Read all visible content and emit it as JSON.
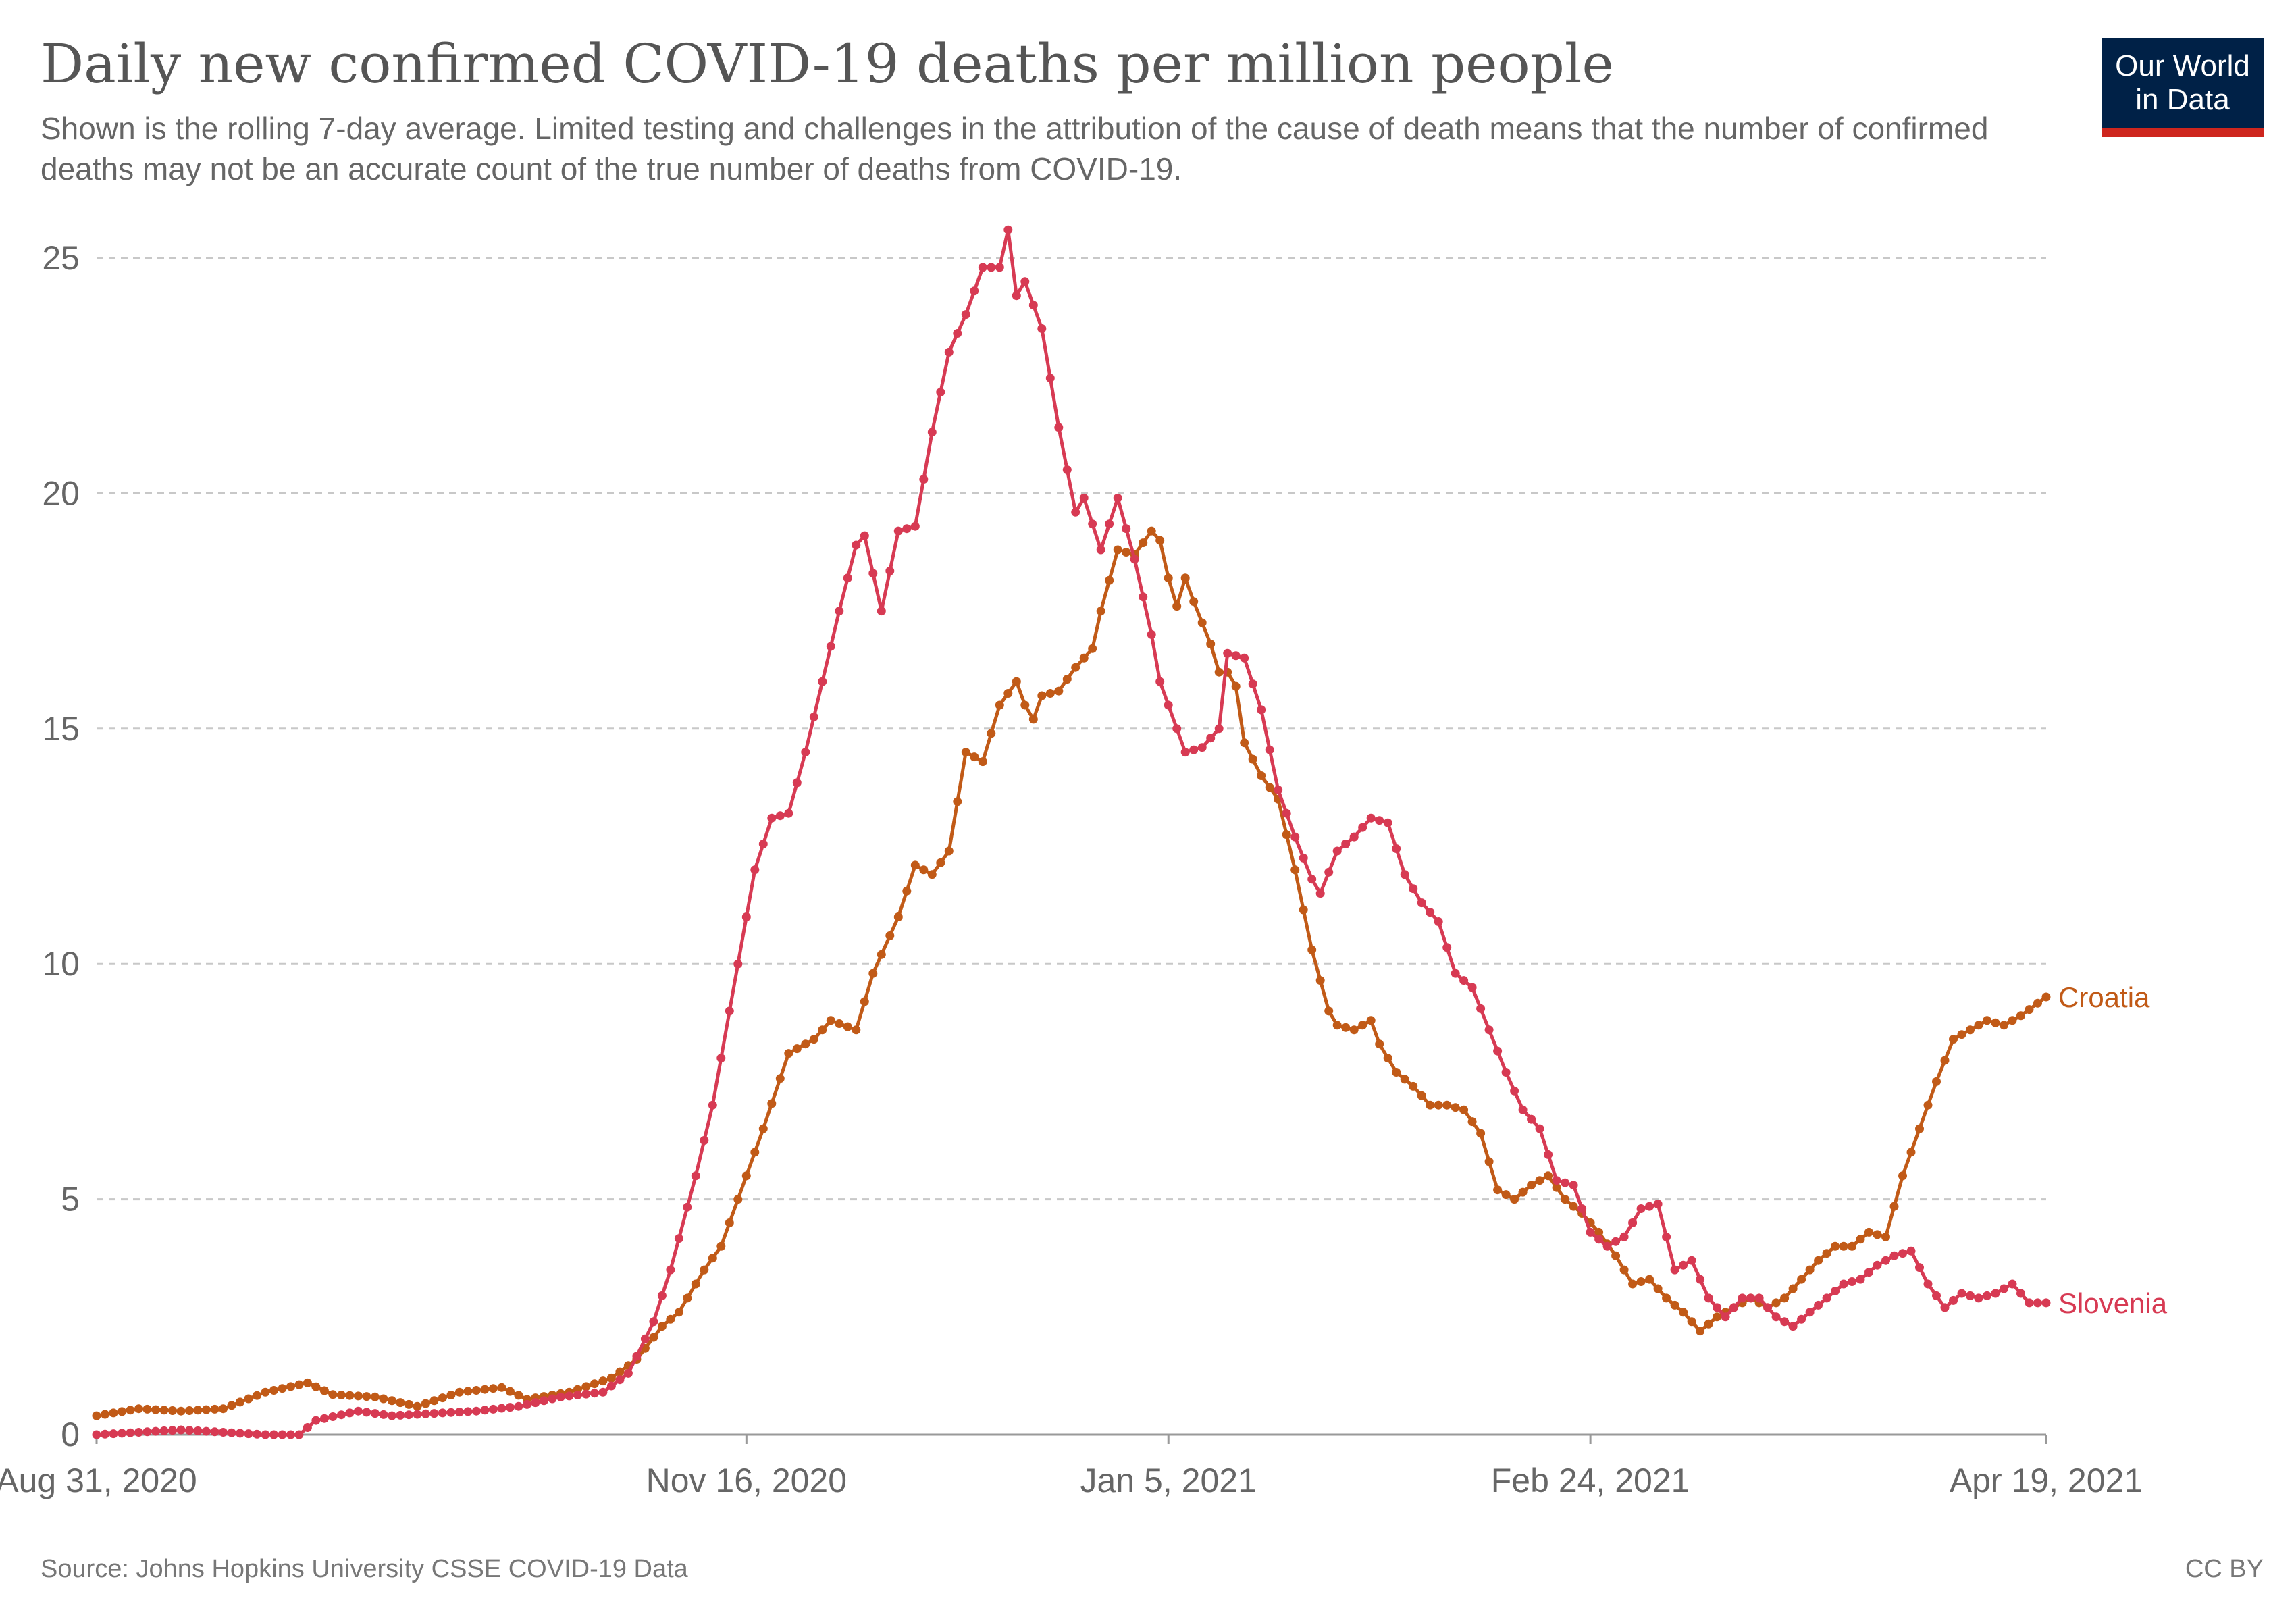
{
  "header": {
    "title": "Daily new confirmed COVID-19 deaths per million people",
    "subtitle": "Shown is the rolling 7-day average. Limited testing and challenges in the attribution of the cause of death means that the number of confirmed deaths may not be an accurate count of the true number of deaths from COVID-19."
  },
  "logo": {
    "line1": "Our World",
    "line2": "in Data"
  },
  "footer": {
    "source": "Source: Johns Hopkins University CSSE COVID-19 Data",
    "license": "CC BY"
  },
  "colors": {
    "croatia": "#c15a17",
    "slovenia": "#d73a53",
    "grid": "#c8c8c8",
    "axis": "#666666"
  },
  "chart_data": {
    "type": "line",
    "title": "Daily new confirmed COVID-19 deaths per million people",
    "x_start": "2020-08-31",
    "x_end": "2021-04-19",
    "xlim": [
      "2020-08-31",
      "2021-04-19"
    ],
    "ylim": [
      0,
      25
    ],
    "yticks": [
      0,
      5,
      10,
      15,
      20,
      25
    ],
    "xticks": [
      {
        "date": "2020-08-31",
        "label": "Aug 31, 2020"
      },
      {
        "date": "2020-11-16",
        "label": "Nov 16, 2020"
      },
      {
        "date": "2021-01-05",
        "label": "Jan 5, 2021"
      },
      {
        "date": "2021-02-24",
        "label": "Feb 24, 2021"
      },
      {
        "date": "2021-04-19",
        "label": "Apr 19, 2021"
      }
    ],
    "grid": "horizontal dashed",
    "legend": "labels at line ends",
    "series": [
      {
        "name": "Croatia",
        "points": [
          [
            "2020-08-31",
            0.4
          ],
          [
            "2020-09-05",
            0.55
          ],
          [
            "2020-09-10",
            0.5
          ],
          [
            "2020-09-15",
            0.55
          ],
          [
            "2020-09-20",
            0.9
          ],
          [
            "2020-09-25",
            1.1
          ],
          [
            "2020-09-28",
            0.85
          ],
          [
            "2020-10-03",
            0.8
          ],
          [
            "2020-10-08",
            0.6
          ],
          [
            "2020-10-13",
            0.9
          ],
          [
            "2020-10-18",
            1.0
          ],
          [
            "2020-10-21",
            0.75
          ],
          [
            "2020-10-26",
            0.9
          ],
          [
            "2020-10-31",
            1.2
          ],
          [
            "2020-11-03",
            1.6
          ],
          [
            "2020-11-06",
            2.3
          ],
          [
            "2020-11-08",
            2.6
          ],
          [
            "2020-11-11",
            3.5
          ],
          [
            "2020-11-13",
            4.0
          ],
          [
            "2020-11-16",
            5.5
          ],
          [
            "2020-11-18",
            6.5
          ],
          [
            "2020-11-21",
            8.1
          ],
          [
            "2020-11-24",
            8.4
          ],
          [
            "2020-11-26",
            8.8
          ],
          [
            "2020-11-29",
            8.6
          ],
          [
            "2020-12-01",
            9.8
          ],
          [
            "2020-12-04",
            11.0
          ],
          [
            "2020-12-06",
            12.1
          ],
          [
            "2020-12-08",
            11.9
          ],
          [
            "2020-12-10",
            12.4
          ],
          [
            "2020-12-12",
            14.5
          ],
          [
            "2020-12-14",
            14.3
          ],
          [
            "2020-12-16",
            15.5
          ],
          [
            "2020-12-18",
            16.0
          ],
          [
            "2020-12-19",
            15.5
          ],
          [
            "2020-12-20",
            15.2
          ],
          [
            "2020-12-21",
            15.7
          ],
          [
            "2020-12-23",
            15.8
          ],
          [
            "2020-12-25",
            16.3
          ],
          [
            "2020-12-27",
            16.7
          ],
          [
            "2020-12-28",
            17.5
          ],
          [
            "2020-12-30",
            18.8
          ],
          [
            "2021-01-01",
            18.7
          ],
          [
            "2021-01-03",
            19.2
          ],
          [
            "2021-01-04",
            19.0
          ],
          [
            "2021-01-05",
            18.2
          ],
          [
            "2021-01-06",
            17.6
          ],
          [
            "2021-01-07",
            18.2
          ],
          [
            "2021-01-08",
            17.7
          ],
          [
            "2021-01-10",
            16.8
          ],
          [
            "2021-01-11",
            16.2
          ],
          [
            "2021-01-12",
            16.2
          ],
          [
            "2021-01-13",
            15.9
          ],
          [
            "2021-01-14",
            14.7
          ],
          [
            "2021-01-16",
            14.0
          ],
          [
            "2021-01-18",
            13.5
          ],
          [
            "2021-01-20",
            12.0
          ],
          [
            "2021-01-22",
            10.3
          ],
          [
            "2021-01-24",
            9.0
          ],
          [
            "2021-01-25",
            8.7
          ],
          [
            "2021-01-27",
            8.6
          ],
          [
            "2021-01-29",
            8.8
          ],
          [
            "2021-01-30",
            8.3
          ],
          [
            "2021-02-01",
            7.7
          ],
          [
            "2021-02-03",
            7.4
          ],
          [
            "2021-02-05",
            7.0
          ],
          [
            "2021-02-07",
            7.0
          ],
          [
            "2021-02-09",
            6.9
          ],
          [
            "2021-02-11",
            6.4
          ],
          [
            "2021-02-13",
            5.2
          ],
          [
            "2021-02-15",
            5.0
          ],
          [
            "2021-02-17",
            5.3
          ],
          [
            "2021-02-19",
            5.5
          ],
          [
            "2021-02-21",
            5.0
          ],
          [
            "2021-02-23",
            4.7
          ],
          [
            "2021-02-25",
            4.3
          ],
          [
            "2021-02-27",
            3.8
          ],
          [
            "2021-03-01",
            3.2
          ],
          [
            "2021-03-03",
            3.3
          ],
          [
            "2021-03-05",
            2.9
          ],
          [
            "2021-03-07",
            2.6
          ],
          [
            "2021-03-09",
            2.2
          ],
          [
            "2021-03-11",
            2.5
          ],
          [
            "2021-03-13",
            2.7
          ],
          [
            "2021-03-15",
            2.9
          ],
          [
            "2021-03-17",
            2.7
          ],
          [
            "2021-03-19",
            2.9
          ],
          [
            "2021-03-21",
            3.3
          ],
          [
            "2021-03-23",
            3.7
          ],
          [
            "2021-03-25",
            4.0
          ],
          [
            "2021-03-27",
            4.0
          ],
          [
            "2021-03-29",
            4.3
          ],
          [
            "2021-03-31",
            4.2
          ],
          [
            "2021-04-02",
            5.5
          ],
          [
            "2021-04-04",
            6.5
          ],
          [
            "2021-04-06",
            7.5
          ],
          [
            "2021-04-08",
            8.4
          ],
          [
            "2021-04-10",
            8.6
          ],
          [
            "2021-04-12",
            8.8
          ],
          [
            "2021-04-14",
            8.7
          ],
          [
            "2021-04-16",
            8.9
          ],
          [
            "2021-04-19",
            9.3
          ]
        ]
      },
      {
        "name": "Slovenia",
        "points": [
          [
            "2020-08-31",
            0.0
          ],
          [
            "2020-09-05",
            0.05
          ],
          [
            "2020-09-10",
            0.1
          ],
          [
            "2020-09-15",
            0.05
          ],
          [
            "2020-09-20",
            0.0
          ],
          [
            "2020-09-24",
            0.0
          ],
          [
            "2020-09-26",
            0.3
          ],
          [
            "2020-10-01",
            0.5
          ],
          [
            "2020-10-05",
            0.4
          ],
          [
            "2020-10-10",
            0.45
          ],
          [
            "2020-10-15",
            0.5
          ],
          [
            "2020-10-20",
            0.6
          ],
          [
            "2020-10-25",
            0.8
          ],
          [
            "2020-10-30",
            0.9
          ],
          [
            "2020-11-02",
            1.3
          ],
          [
            "2020-11-05",
            2.4
          ],
          [
            "2020-11-07",
            3.5
          ],
          [
            "2020-11-10",
            5.5
          ],
          [
            "2020-11-12",
            7.0
          ],
          [
            "2020-11-15",
            10.0
          ],
          [
            "2020-11-17",
            12.0
          ],
          [
            "2020-11-19",
            13.1
          ],
          [
            "2020-11-21",
            13.2
          ],
          [
            "2020-11-23",
            14.5
          ],
          [
            "2020-11-25",
            16.0
          ],
          [
            "2020-11-27",
            17.5
          ],
          [
            "2020-11-29",
            18.9
          ],
          [
            "2020-11-30",
            19.1
          ],
          [
            "2020-12-02",
            17.5
          ],
          [
            "2020-12-04",
            19.2
          ],
          [
            "2020-12-06",
            19.3
          ],
          [
            "2020-12-08",
            21.3
          ],
          [
            "2020-12-10",
            23.0
          ],
          [
            "2020-12-12",
            23.8
          ],
          [
            "2020-12-14",
            24.8
          ],
          [
            "2020-12-16",
            24.8
          ],
          [
            "2020-12-17",
            25.6
          ],
          [
            "2020-12-18",
            24.2
          ],
          [
            "2020-12-19",
            24.5
          ],
          [
            "2020-12-21",
            23.5
          ],
          [
            "2020-12-23",
            21.4
          ],
          [
            "2020-12-25",
            19.6
          ],
          [
            "2020-12-26",
            19.9
          ],
          [
            "2020-12-28",
            18.8
          ],
          [
            "2020-12-30",
            19.9
          ],
          [
            "2021-01-01",
            18.6
          ],
          [
            "2021-01-03",
            17.0
          ],
          [
            "2021-01-04",
            16.0
          ],
          [
            "2021-01-06",
            15.0
          ],
          [
            "2021-01-07",
            14.5
          ],
          [
            "2021-01-09",
            14.6
          ],
          [
            "2021-01-11",
            15.0
          ],
          [
            "2021-01-12",
            16.6
          ],
          [
            "2021-01-14",
            16.5
          ],
          [
            "2021-01-16",
            15.4
          ],
          [
            "2021-01-18",
            13.7
          ],
          [
            "2021-01-20",
            12.7
          ],
          [
            "2021-01-22",
            11.8
          ],
          [
            "2021-01-23",
            11.5
          ],
          [
            "2021-01-25",
            12.4
          ],
          [
            "2021-01-27",
            12.7
          ],
          [
            "2021-01-29",
            13.1
          ],
          [
            "2021-01-31",
            13.0
          ],
          [
            "2021-02-02",
            11.9
          ],
          [
            "2021-02-04",
            11.3
          ],
          [
            "2021-02-06",
            10.9
          ],
          [
            "2021-02-08",
            9.8
          ],
          [
            "2021-02-10",
            9.5
          ],
          [
            "2021-02-12",
            8.6
          ],
          [
            "2021-02-14",
            7.7
          ],
          [
            "2021-02-16",
            6.9
          ],
          [
            "2021-02-18",
            6.5
          ],
          [
            "2021-02-20",
            5.4
          ],
          [
            "2021-02-22",
            5.3
          ],
          [
            "2021-02-24",
            4.3
          ],
          [
            "2021-02-26",
            4.0
          ],
          [
            "2021-02-28",
            4.2
          ],
          [
            "2021-03-02",
            4.8
          ],
          [
            "2021-03-04",
            4.9
          ],
          [
            "2021-03-06",
            3.5
          ],
          [
            "2021-03-08",
            3.7
          ],
          [
            "2021-03-10",
            2.9
          ],
          [
            "2021-03-12",
            2.5
          ],
          [
            "2021-03-14",
            2.9
          ],
          [
            "2021-03-16",
            2.9
          ],
          [
            "2021-03-18",
            2.5
          ],
          [
            "2021-03-20",
            2.3
          ],
          [
            "2021-03-22",
            2.6
          ],
          [
            "2021-03-24",
            2.9
          ],
          [
            "2021-03-26",
            3.2
          ],
          [
            "2021-03-28",
            3.3
          ],
          [
            "2021-03-30",
            3.6
          ],
          [
            "2021-04-01",
            3.8
          ],
          [
            "2021-04-03",
            3.9
          ],
          [
            "2021-04-05",
            3.2
          ],
          [
            "2021-04-07",
            2.7
          ],
          [
            "2021-04-09",
            3.0
          ],
          [
            "2021-04-11",
            2.9
          ],
          [
            "2021-04-13",
            3.0
          ],
          [
            "2021-04-15",
            3.2
          ],
          [
            "2021-04-17",
            2.8
          ],
          [
            "2021-04-19",
            2.8
          ]
        ]
      }
    ]
  }
}
